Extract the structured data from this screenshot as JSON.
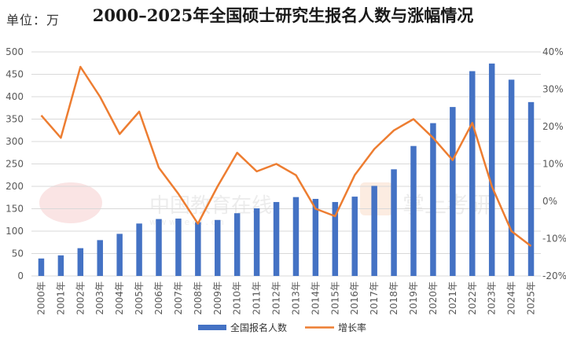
{
  "header": {
    "unit": "单位：万",
    "title": "2000–2025年全国硕士研究生报名人数与涨幅情况"
  },
  "watermarks": {
    "left": "中国教育在线",
    "left_url": "w w w . e o l . c n",
    "right": "掌上考研"
  },
  "chart_data": {
    "type": "bar",
    "title": "2000–2025年全国硕士研究生报名人数与涨幅情况",
    "categories": [
      "2000年",
      "2001年",
      "2002年",
      "2003年",
      "2004年",
      "2005年",
      "2006年",
      "2007年",
      "2008年",
      "2009年",
      "2010年",
      "2011年",
      "2012年",
      "2013年",
      "2014年",
      "2015年",
      "2016年",
      "2017年",
      "2018年",
      "2019年",
      "2020年",
      "2021年",
      "2022年",
      "2023年",
      "2024年",
      "2025年"
    ],
    "series": [
      {
        "name": "全国报名人数",
        "type": "bar",
        "axis": "left",
        "color": "#4472C4",
        "values": [
          39,
          46,
          62,
          80,
          94,
          117,
          127,
          128,
          120,
          125,
          140,
          151,
          165,
          176,
          172,
          165,
          177,
          201,
          238,
          290,
          341,
          377,
          457,
          474,
          438,
          388
        ]
      },
      {
        "name": "增长率",
        "type": "line",
        "axis": "right",
        "color": "#ED7D31",
        "values": [
          23,
          17,
          36,
          28,
          18,
          24,
          9,
          2,
          -6,
          4,
          13,
          8,
          10,
          7,
          -2,
          -4,
          7,
          14,
          19,
          22,
          17,
          11,
          21,
          4,
          -8,
          -12
        ]
      }
    ],
    "left_axis": {
      "ylim": [
        0,
        500
      ],
      "ticks": [
        0,
        50,
        100,
        150,
        200,
        250,
        300,
        350,
        400,
        450,
        500
      ]
    },
    "right_axis": {
      "ylim": [
        -20,
        40
      ],
      "ticks": [
        "-20%",
        "-10%",
        "0%",
        "10%",
        "20%",
        "30%",
        "40%"
      ]
    },
    "grid": true,
    "legend": {
      "position": "bottom",
      "entries": [
        "全国报名人数",
        "增长率"
      ]
    }
  }
}
